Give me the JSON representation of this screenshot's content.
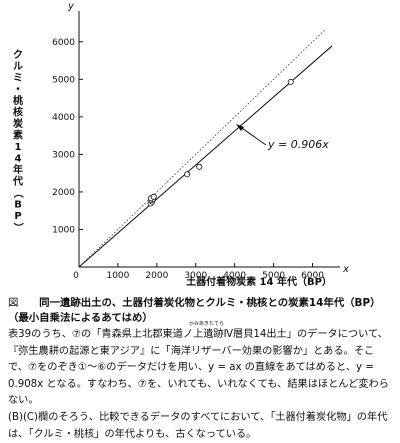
{
  "chart_data": {
    "type": "scatter",
    "xlabel": "土器付着物炭素 14 年代（BP）",
    "ylabel": "クルミ・桃核炭素14年代（BP）",
    "x_axis_letter": "x",
    "y_axis_letter": "y",
    "xlim": [
      0,
      6500
    ],
    "ylim": [
      0,
      6500
    ],
    "xticks": [
      0,
      1000,
      2000,
      3000,
      4000,
      5000,
      6000
    ],
    "yticks": [
      1000,
      2000,
      3000,
      4000,
      5000,
      6000
    ],
    "x_tick_labels": [
      "0",
      "1000",
      "2000",
      "3000",
      "4000",
      "5000",
      "6000"
    ],
    "y_tick_labels": [
      "1000",
      "2000",
      "3000",
      "4000",
      "5000",
      "6000"
    ],
    "points": [
      {
        "x": 1840,
        "y": 1690
      },
      {
        "x": 1880,
        "y": 1740
      },
      {
        "x": 1860,
        "y": 1780
      },
      {
        "x": 1900,
        "y": 1810
      },
      {
        "x": 1850,
        "y": 1830
      },
      {
        "x": 1920,
        "y": 1870
      },
      {
        "x": 2780,
        "y": 2470
      },
      {
        "x": 3090,
        "y": 2670
      },
      {
        "x": 5440,
        "y": 4930
      }
    ],
    "fit_line": {
      "slope": 0.906,
      "label": "y = 0.906x",
      "style": "solid"
    },
    "reference_line": {
      "slope": 1,
      "style": "dotted"
    },
    "grid": false
  },
  "caption": {
    "figure_label": "図",
    "title": "同一遺跡出土の、土器付着炭化物とクルミ・桃核との炭素14年代（BP）（最小自乗法によるあてはめ）"
  },
  "body": {
    "ruby": "かみあきたてら",
    "text": "表39のうち、⑦の「青森県上北郡東道ノ上遺跡Ⅳ層貝14出土」のデータについて、『弥生農耕の起源と東アジア』に「海洋リザーバー効果の影響か」とある。そこで、⑦をのぞき①～⑥のデータだけを用い、y = ax の直線をあてはめると、y = 0.908x となる。すなわち、⑦を、いれても、いれなくても、結果はほとんど変わらない。\n(B)(C)欄のそろう、比較できるデータのすべてにおいて、「土器付着炭化物」の年代は、「クルミ・桃核」の年代よりも、古くなっている。"
  }
}
